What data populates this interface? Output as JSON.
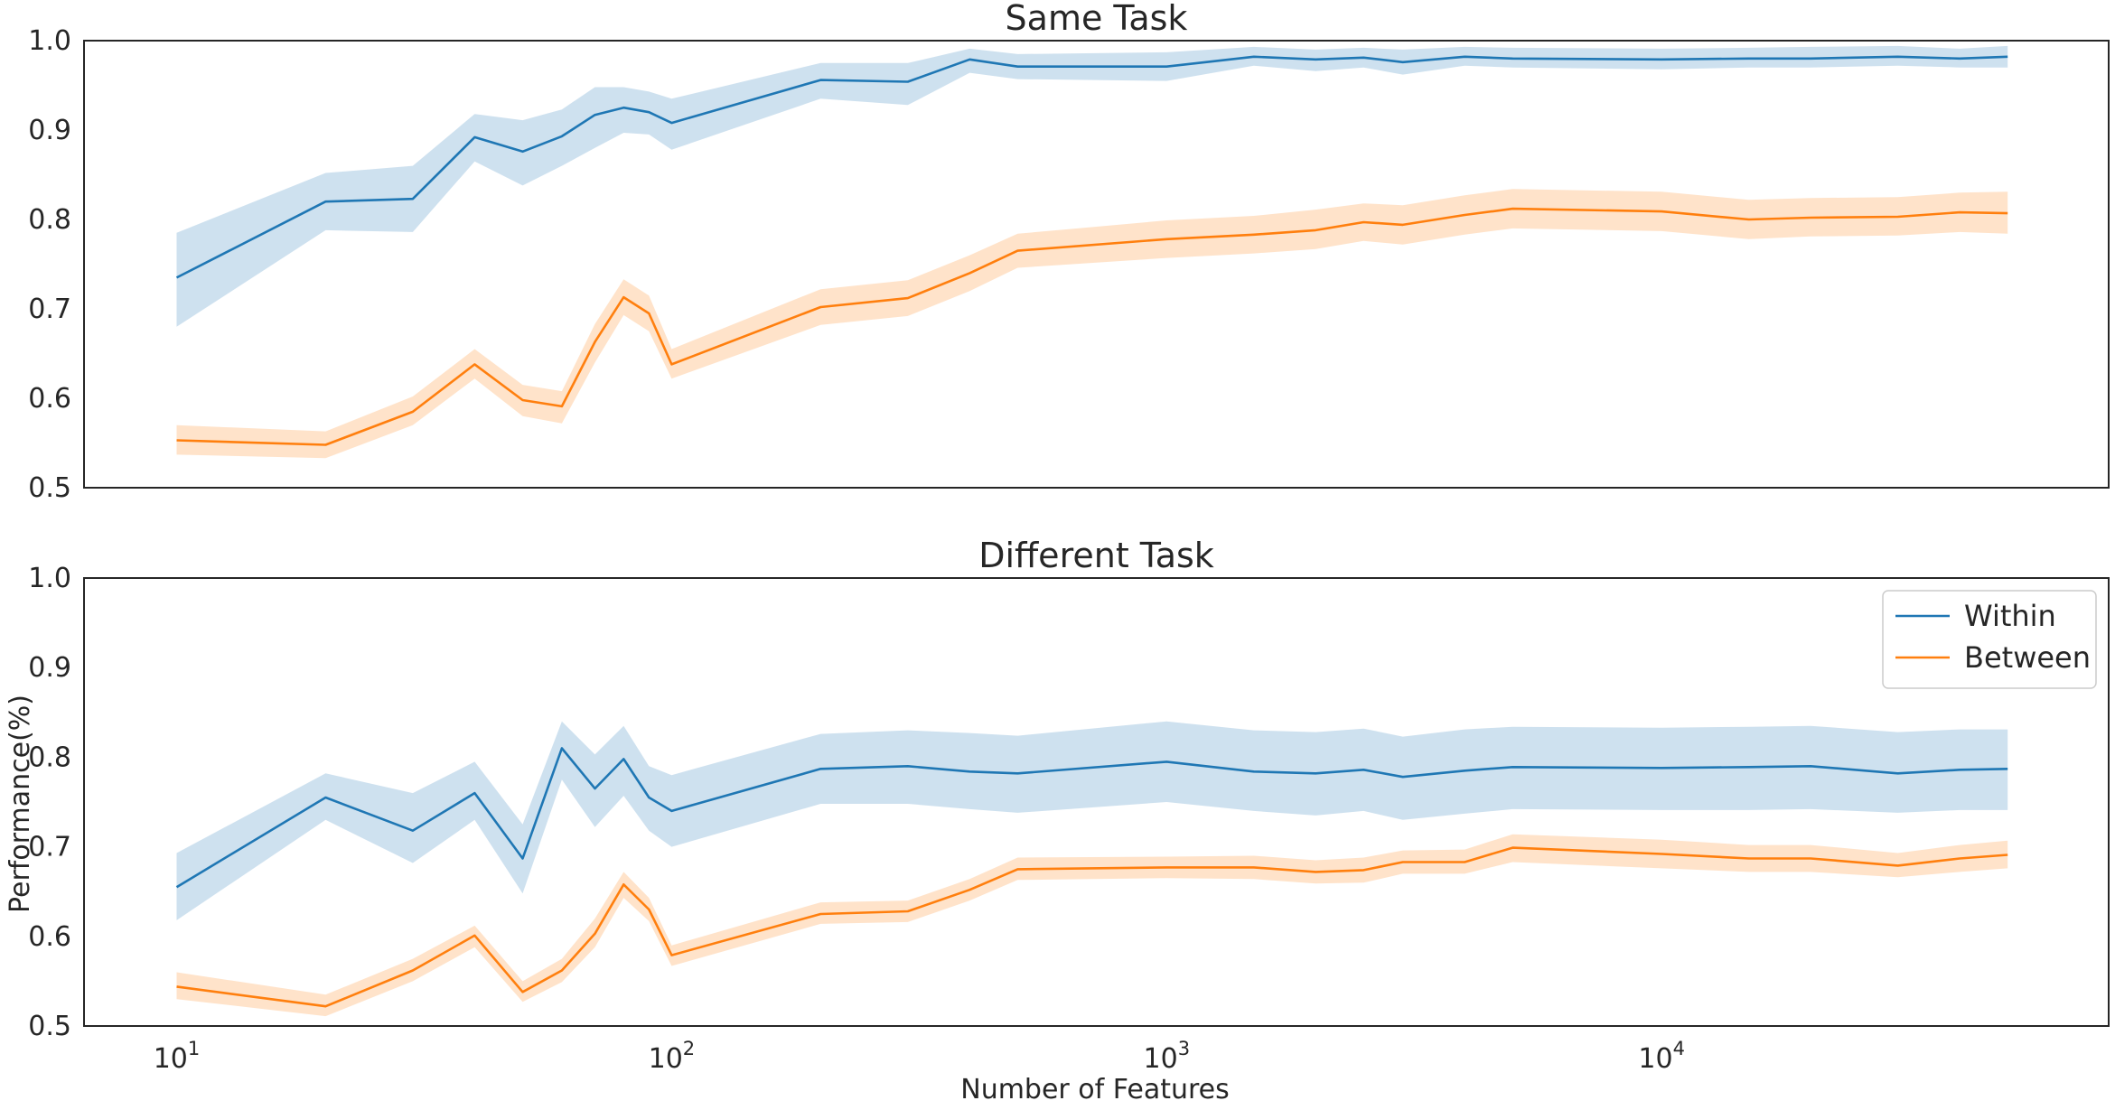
{
  "chart_data": {
    "type": "line",
    "shared_xlabel": "Number of Features",
    "shared_ylabel": "Performance(%)",
    "x_scale": "log",
    "xlim": [
      6.5,
      80000
    ],
    "x_ticks": [
      10,
      100,
      1000,
      10000
    ],
    "x_tick_labels": [
      {
        "base": "10",
        "exp": "1"
      },
      {
        "base": "10",
        "exp": "2"
      },
      {
        "base": "10",
        "exp": "3"
      },
      {
        "base": "10",
        "exp": "4"
      }
    ],
    "colors": {
      "Within": "#1f77b4",
      "Between": "#ff7f0e"
    },
    "legend": {
      "placement": "upper right",
      "entries": [
        "Within",
        "Between"
      ]
    },
    "grid": false,
    "x": [
      10,
      20,
      30,
      40,
      50,
      60,
      70,
      80,
      90,
      100,
      200,
      300,
      400,
      500,
      1000,
      1500,
      2000,
      2500,
      3000,
      4000,
      5000,
      10000,
      15000,
      20000,
      30000,
      40000,
      50000
    ],
    "panels": [
      {
        "title": "Same Task",
        "ylim": [
          0.5,
          1.0
        ],
        "y_ticks": [
          0.5,
          0.6,
          0.7,
          0.8,
          0.9,
          1.0
        ],
        "y_tick_labels": [
          "0.5",
          "0.6",
          "0.7",
          "0.8",
          "0.9",
          "1.0"
        ],
        "show_legend": false,
        "show_x_tick_labels": false,
        "series": [
          {
            "name": "Within",
            "values": [
              0.735,
              0.82,
              0.823,
              0.892,
              0.876,
              0.893,
              0.917,
              0.925,
              0.92,
              0.908,
              0.956,
              0.954,
              0.979,
              0.971,
              0.971,
              0.982,
              0.979,
              0.981,
              0.976,
              0.982,
              0.98,
              0.979,
              0.98,
              0.98,
              0.982,
              0.98,
              0.982
            ],
            "lower": [
              0.68,
              0.788,
              0.786,
              0.865,
              0.838,
              0.86,
              0.88,
              0.897,
              0.895,
              0.878,
              0.935,
              0.928,
              0.964,
              0.957,
              0.955,
              0.972,
              0.966,
              0.97,
              0.962,
              0.972,
              0.97,
              0.968,
              0.97,
              0.97,
              0.972,
              0.97,
              0.97
            ],
            "upper": [
              0.785,
              0.852,
              0.86,
              0.918,
              0.911,
              0.923,
              0.948,
              0.948,
              0.943,
              0.935,
              0.975,
              0.975,
              0.991,
              0.985,
              0.987,
              0.993,
              0.99,
              0.992,
              0.99,
              0.993,
              0.992,
              0.991,
              0.992,
              0.993,
              0.994,
              0.991,
              0.994
            ]
          },
          {
            "name": "Between",
            "values": [
              0.553,
              0.548,
              0.585,
              0.638,
              0.598,
              0.591,
              0.663,
              0.713,
              0.695,
              0.638,
              0.702,
              0.712,
              0.74,
              0.765,
              0.778,
              0.783,
              0.788,
              0.797,
              0.794,
              0.805,
              0.812,
              0.809,
              0.8,
              0.802,
              0.803,
              0.808,
              0.807
            ],
            "lower": [
              0.537,
              0.533,
              0.57,
              0.622,
              0.58,
              0.572,
              0.64,
              0.693,
              0.675,
              0.622,
              0.682,
              0.692,
              0.72,
              0.746,
              0.757,
              0.762,
              0.767,
              0.776,
              0.772,
              0.783,
              0.79,
              0.787,
              0.778,
              0.781,
              0.782,
              0.786,
              0.784
            ],
            "upper": [
              0.57,
              0.563,
              0.602,
              0.655,
              0.615,
              0.608,
              0.683,
              0.733,
              0.715,
              0.655,
              0.722,
              0.732,
              0.76,
              0.784,
              0.799,
              0.804,
              0.811,
              0.818,
              0.816,
              0.827,
              0.834,
              0.831,
              0.822,
              0.824,
              0.825,
              0.83,
              0.831
            ]
          }
        ]
      },
      {
        "title": "Different Task",
        "ylim": [
          0.5,
          1.0
        ],
        "y_ticks": [
          0.5,
          0.6,
          0.7,
          0.8,
          0.9,
          1.0
        ],
        "y_tick_labels": [
          "0.5",
          "0.6",
          "0.7",
          "0.8",
          "0.9",
          "1.0"
        ],
        "show_legend": true,
        "show_x_tick_labels": true,
        "series": [
          {
            "name": "Within",
            "values": [
              0.655,
              0.755,
              0.718,
              0.76,
              0.687,
              0.81,
              0.765,
              0.798,
              0.755,
              0.74,
              0.787,
              0.79,
              0.784,
              0.782,
              0.795,
              0.784,
              0.782,
              0.786,
              0.778,
              0.785,
              0.789,
              0.788,
              0.789,
              0.79,
              0.782,
              0.786,
              0.787
            ],
            "lower": [
              0.618,
              0.73,
              0.682,
              0.73,
              0.648,
              0.775,
              0.722,
              0.757,
              0.718,
              0.7,
              0.748,
              0.748,
              0.742,
              0.738,
              0.75,
              0.74,
              0.735,
              0.74,
              0.73,
              0.737,
              0.742,
              0.741,
              0.741,
              0.742,
              0.738,
              0.741,
              0.741
            ],
            "upper": [
              0.693,
              0.782,
              0.76,
              0.795,
              0.725,
              0.84,
              0.803,
              0.835,
              0.79,
              0.78,
              0.826,
              0.83,
              0.827,
              0.824,
              0.84,
              0.83,
              0.828,
              0.832,
              0.823,
              0.831,
              0.834,
              0.833,
              0.834,
              0.835,
              0.828,
              0.831,
              0.831
            ]
          },
          {
            "name": "Between",
            "values": [
              0.544,
              0.522,
              0.562,
              0.601,
              0.538,
              0.562,
              0.603,
              0.658,
              0.63,
              0.579,
              0.625,
              0.628,
              0.652,
              0.675,
              0.677,
              0.677,
              0.672,
              0.674,
              0.683,
              0.683,
              0.699,
              0.692,
              0.687,
              0.687,
              0.679,
              0.687,
              0.691
            ],
            "lower": [
              0.53,
              0.511,
              0.55,
              0.588,
              0.527,
              0.549,
              0.588,
              0.643,
              0.617,
              0.567,
              0.614,
              0.616,
              0.64,
              0.663,
              0.665,
              0.664,
              0.659,
              0.66,
              0.67,
              0.67,
              0.683,
              0.676,
              0.672,
              0.672,
              0.666,
              0.672,
              0.676
            ],
            "upper": [
              0.56,
              0.535,
              0.575,
              0.612,
              0.55,
              0.575,
              0.62,
              0.672,
              0.643,
              0.59,
              0.638,
              0.64,
              0.664,
              0.688,
              0.689,
              0.69,
              0.685,
              0.688,
              0.696,
              0.697,
              0.714,
              0.708,
              0.702,
              0.702,
              0.693,
              0.702,
              0.707
            ]
          }
        ]
      }
    ]
  }
}
